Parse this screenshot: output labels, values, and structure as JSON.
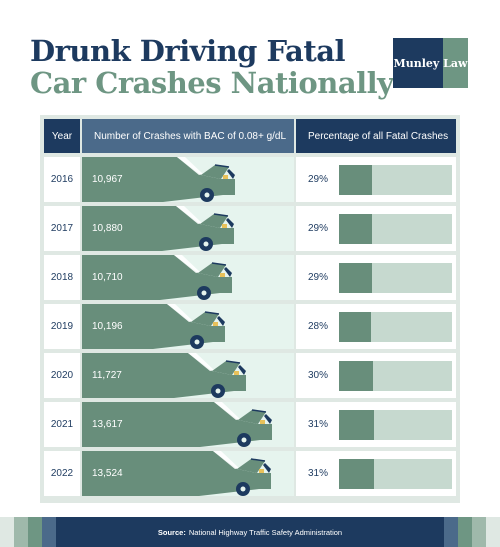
{
  "title_line1": "Drunk Driving Fatal",
  "title_line2": "Car Crashes Nationally",
  "brand": "Munley Law",
  "colors": {
    "navy": "#1d3a5f",
    "green": "#688e7b",
    "light_green": "#e6f4ee",
    "track": "#c6d9cf"
  },
  "headers": {
    "year": "Year",
    "crashes": "Number of Crashes with BAC of 0.08+ g/dL",
    "percentage": "Percentage of all Fatal Crashes"
  },
  "rows": [
    {
      "year": "2016",
      "crashes": "10,967",
      "percent": "29%"
    },
    {
      "year": "2017",
      "crashes": "10,880",
      "percent": "29%"
    },
    {
      "year": "2018",
      "crashes": "10,710",
      "percent": "29%"
    },
    {
      "year": "2019",
      "crashes": "10,196",
      "percent": "28%"
    },
    {
      "year": "2020",
      "crashes": "11,727",
      "percent": "30%"
    },
    {
      "year": "2021",
      "crashes": "13,617",
      "percent": "31%"
    },
    {
      "year": "2022",
      "crashes": "13,524",
      "percent": "31%"
    }
  ],
  "source_label": "Source:",
  "source_text": "National Highway Traffic Safety Administration",
  "chart_data": {
    "type": "table",
    "categories": [
      "2016",
      "2017",
      "2018",
      "2019",
      "2020",
      "2021",
      "2022"
    ],
    "series": [
      {
        "name": "Number of Crashes with BAC of 0.08+ g/dL",
        "values": [
          10967,
          10880,
          10710,
          10196,
          11727,
          13617,
          13524
        ]
      },
      {
        "name": "Percentage of all Fatal Crashes",
        "values": [
          29,
          29,
          29,
          28,
          30,
          31,
          31
        ]
      }
    ],
    "title": "Drunk Driving Fatal Car Crashes Nationally"
  }
}
